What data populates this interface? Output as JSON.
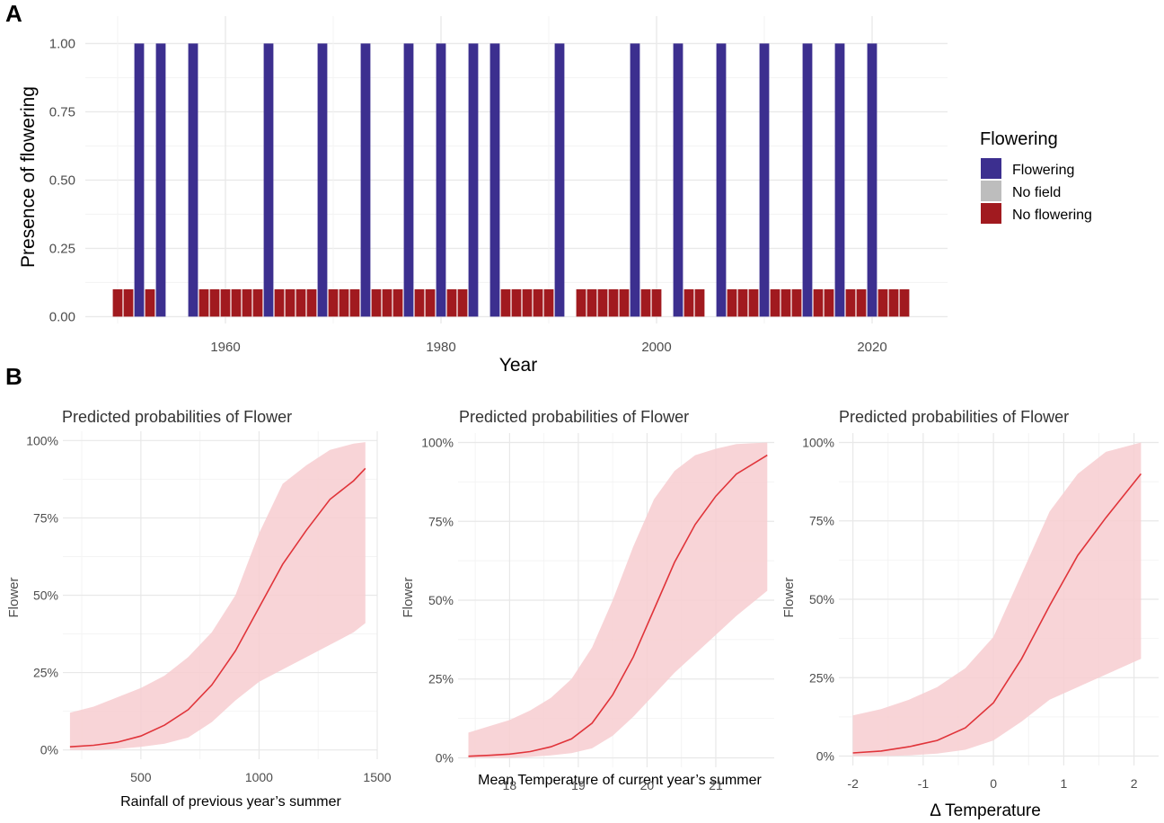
{
  "panel_a": {
    "letter": "A",
    "legend": {
      "title": "Flowering",
      "items": [
        {
          "label": "Flowering",
          "color": "#3c2f8f"
        },
        {
          "label": "No field",
          "color": "#bdbdbd"
        },
        {
          "label": "No flowering",
          "color": "#a11a1f"
        }
      ]
    }
  },
  "panel_b": {
    "letter": "B"
  },
  "chart_data": [
    {
      "type": "bar",
      "title": "",
      "xlabel": "Year",
      "ylabel": "Presence of flowering",
      "xlim": [
        1947,
        2027
      ],
      "ylim": [
        -0.025,
        1.1
      ],
      "x_ticks": [
        1960,
        1980,
        2000,
        2020
      ],
      "y_ticks": [
        "0.00",
        "0.25",
        "0.50",
        "0.75",
        "1.00"
      ],
      "series": [
        {
          "name": "Flowering",
          "value": 1.0,
          "years": [
            1952,
            1954,
            1957,
            1964,
            1969,
            1973,
            1977,
            1980,
            1983,
            1985,
            1991,
            1998,
            2002,
            2006,
            2010,
            2014,
            2017,
            2020
          ]
        },
        {
          "name": "No flowering",
          "value": 0.1,
          "years": [
            1950,
            1951,
            1953,
            1958,
            1959,
            1960,
            1961,
            1962,
            1963,
            1965,
            1966,
            1967,
            1968,
            1970,
            1971,
            1972,
            1974,
            1975,
            1976,
            1978,
            1979,
            1981,
            1982,
            1986,
            1987,
            1988,
            1989,
            1990,
            1993,
            1994,
            1995,
            1996,
            1997,
            1999,
            2000,
            2003,
            2004,
            2007,
            2008,
            2009,
            2011,
            2012,
            2013,
            2015,
            2016,
            2018,
            2019,
            2021,
            2022,
            2023
          ]
        },
        {
          "name": "No field",
          "value": 0.0,
          "years": []
        }
      ]
    },
    {
      "type": "area",
      "title": "Predicted probabilities of Flower",
      "xlabel": "Rainfall of previous year’s summer",
      "ylabel": "Flower",
      "xlim": [
        170,
        1500
      ],
      "ylim": [
        -0.03,
        1.03
      ],
      "x_ticks": [
        "500",
        "1000",
        "1500"
      ],
      "x_tick_values": [
        500,
        1000,
        1500
      ],
      "y_ticks": [
        "0%",
        "25%",
        "50%",
        "75%",
        "100%"
      ],
      "x": [
        200,
        300,
        400,
        500,
        600,
        700,
        800,
        900,
        1000,
        1100,
        1200,
        1300,
        1400,
        1450
      ],
      "predicted": [
        0.01,
        0.015,
        0.025,
        0.045,
        0.08,
        0.13,
        0.21,
        0.32,
        0.46,
        0.6,
        0.71,
        0.81,
        0.87,
        0.91
      ],
      "ci_low": [
        0.0,
        0.0,
        0.003,
        0.01,
        0.02,
        0.04,
        0.09,
        0.16,
        0.22,
        0.26,
        0.3,
        0.34,
        0.38,
        0.41
      ],
      "ci_high": [
        0.12,
        0.14,
        0.17,
        0.2,
        0.24,
        0.3,
        0.38,
        0.5,
        0.7,
        0.86,
        0.92,
        0.97,
        0.99,
        0.995
      ]
    },
    {
      "type": "area",
      "title": "Predicted probabilities of Flower",
      "xlabel": "Mean Temperature of current year’s summer",
      "ylabel": "Flower",
      "xlim": [
        17.25,
        21.85
      ],
      "ylim": [
        -0.03,
        1.03
      ],
      "x_ticks": [
        "18",
        "19",
        "20",
        "21"
      ],
      "x_tick_values": [
        18,
        19,
        20,
        21
      ],
      "y_ticks": [
        "0%",
        "25%",
        "50%",
        "75%",
        "100%"
      ],
      "x": [
        17.4,
        17.7,
        18.0,
        18.3,
        18.6,
        18.9,
        19.2,
        19.5,
        19.8,
        20.1,
        20.4,
        20.7,
        21.0,
        21.3,
        21.75
      ],
      "predicted": [
        0.005,
        0.008,
        0.012,
        0.02,
        0.035,
        0.06,
        0.11,
        0.2,
        0.32,
        0.47,
        0.62,
        0.74,
        0.83,
        0.9,
        0.96
      ],
      "ci_low": [
        0.0,
        0.0,
        0.0,
        0.003,
        0.008,
        0.015,
        0.03,
        0.07,
        0.13,
        0.2,
        0.27,
        0.33,
        0.39,
        0.45,
        0.53
      ],
      "ci_high": [
        0.08,
        0.1,
        0.12,
        0.15,
        0.19,
        0.25,
        0.35,
        0.5,
        0.67,
        0.82,
        0.91,
        0.96,
        0.98,
        0.995,
        1.0
      ]
    },
    {
      "type": "area",
      "title": "Predicted probabilities of Flower",
      "xlabel": "Δ Temperature",
      "ylabel": "Flower",
      "xlim": [
        -2.2,
        2.35
      ],
      "ylim": [
        -0.03,
        1.03
      ],
      "x_ticks": [
        "-2",
        "-1",
        "0",
        "1",
        "2"
      ],
      "x_tick_values": [
        -2,
        -1,
        0,
        1,
        2
      ],
      "y_ticks": [
        "0%",
        "25%",
        "50%",
        "75%",
        "100%"
      ],
      "x": [
        -2.0,
        -1.6,
        -1.2,
        -0.8,
        -0.4,
        0.0,
        0.4,
        0.8,
        1.2,
        1.6,
        2.1
      ],
      "predicted": [
        0.01,
        0.016,
        0.03,
        0.05,
        0.09,
        0.17,
        0.31,
        0.48,
        0.64,
        0.76,
        0.9
      ],
      "ci_low": [
        0.0,
        0.0,
        0.002,
        0.008,
        0.02,
        0.05,
        0.11,
        0.18,
        0.22,
        0.26,
        0.31
      ],
      "ci_high": [
        0.13,
        0.15,
        0.18,
        0.22,
        0.28,
        0.38,
        0.58,
        0.78,
        0.9,
        0.97,
        1.0
      ]
    }
  ]
}
